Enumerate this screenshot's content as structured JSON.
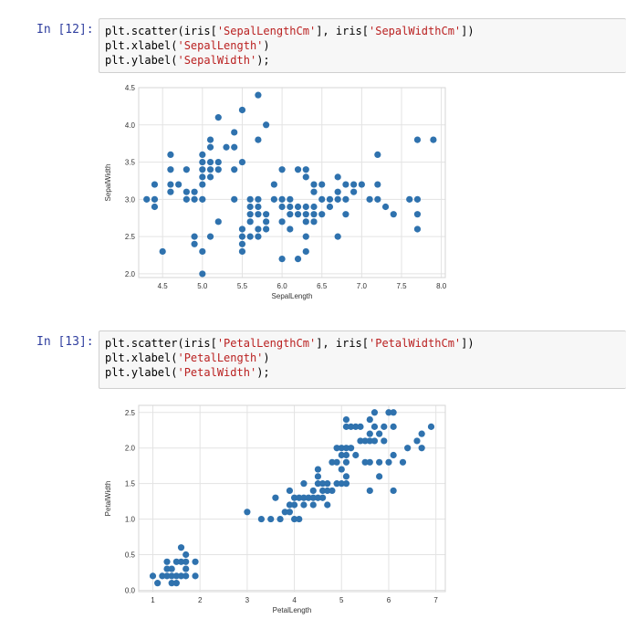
{
  "cells": [
    {
      "prompt": "In [12]:",
      "code": [
        [
          [
            "plt.scatter(iris[",
            ""
          ],
          [
            "'SepalLengthCm'",
            "str"
          ],
          [
            "], iris[",
            ""
          ],
          [
            "'SepalWidthCm'",
            "str"
          ],
          [
            "])",
            ""
          ]
        ],
        [
          [
            "plt.xlabel(",
            ""
          ],
          [
            "'SepalLength'",
            "str"
          ],
          [
            ")",
            ""
          ]
        ],
        [
          [
            "plt.ylabel(",
            ""
          ],
          [
            "'SepalWidth'",
            "str"
          ],
          [
            ");",
            ""
          ]
        ]
      ]
    },
    {
      "prompt": "In [13]:",
      "code": [
        [
          [
            "plt.scatter(iris[",
            ""
          ],
          [
            "'PetalLengthCm'",
            "str"
          ],
          [
            "], iris[",
            ""
          ],
          [
            "'PetalWidthCm'",
            "str"
          ],
          [
            "])",
            ""
          ]
        ],
        [
          [
            "plt.xlabel(",
            ""
          ],
          [
            "'PetalLength'",
            "str"
          ],
          [
            ")",
            ""
          ]
        ],
        [
          [
            "plt.ylabel(",
            ""
          ],
          [
            "'PetalWidth'",
            "str"
          ],
          [
            ");",
            ""
          ]
        ]
      ]
    }
  ],
  "chart_data": [
    {
      "type": "scatter",
      "xlabel": "SepalLength",
      "ylabel": "SepalWidth",
      "xlim": [
        4.2,
        8.05
      ],
      "ylim": [
        1.95,
        4.5
      ],
      "xticks": [
        4.5,
        5.0,
        5.5,
        6.0,
        6.5,
        7.0,
        7.5,
        8.0
      ],
      "xtick_labels": [
        "4.5",
        "5.0",
        "5.5",
        "6.0",
        "6.5",
        "7.0",
        "7.5",
        "8.0"
      ],
      "yticks": [
        2.0,
        2.5,
        3.0,
        3.5,
        4.0,
        4.5
      ],
      "ytick_labels": [
        "2.0",
        "2.5",
        "3.0",
        "3.5",
        "4.0",
        "4.5"
      ],
      "grid": true,
      "color": "#2f72ae",
      "points": [
        [
          4.3,
          3.0
        ],
        [
          4.4,
          3.0
        ],
        [
          4.4,
          2.9
        ],
        [
          4.4,
          3.2
        ],
        [
          4.5,
          2.3
        ],
        [
          4.6,
          3.1
        ],
        [
          4.6,
          3.4
        ],
        [
          4.6,
          3.6
        ],
        [
          4.6,
          3.2
        ],
        [
          4.7,
          3.2
        ],
        [
          4.8,
          3.0
        ],
        [
          4.8,
          3.4
        ],
        [
          4.8,
          3.1
        ],
        [
          4.9,
          3.0
        ],
        [
          4.9,
          3.1
        ],
        [
          4.9,
          2.4
        ],
        [
          4.9,
          2.5
        ],
        [
          5.0,
          3.6
        ],
        [
          5.0,
          3.4
        ],
        [
          5.0,
          3.0
        ],
        [
          5.0,
          3.3
        ],
        [
          5.0,
          3.5
        ],
        [
          5.0,
          3.2
        ],
        [
          5.0,
          2.0
        ],
        [
          5.0,
          2.3
        ],
        [
          5.1,
          3.5
        ],
        [
          5.1,
          3.8
        ],
        [
          5.1,
          3.7
        ],
        [
          5.1,
          3.3
        ],
        [
          5.1,
          3.4
        ],
        [
          5.1,
          2.5
        ],
        [
          5.2,
          3.5
        ],
        [
          5.2,
          3.4
        ],
        [
          5.2,
          4.1
        ],
        [
          5.2,
          2.7
        ],
        [
          5.3,
          3.7
        ],
        [
          5.4,
          3.9
        ],
        [
          5.4,
          3.7
        ],
        [
          5.4,
          3.4
        ],
        [
          5.4,
          3.0
        ],
        [
          5.5,
          4.2
        ],
        [
          5.5,
          3.5
        ],
        [
          5.5,
          2.3
        ],
        [
          5.5,
          2.4
        ],
        [
          5.5,
          2.5
        ],
        [
          5.5,
          2.6
        ],
        [
          5.6,
          3.0
        ],
        [
          5.6,
          2.9
        ],
        [
          5.6,
          2.5
        ],
        [
          5.6,
          2.7
        ],
        [
          5.6,
          2.8
        ],
        [
          5.7,
          4.4
        ],
        [
          5.7,
          3.8
        ],
        [
          5.7,
          2.8
        ],
        [
          5.7,
          2.6
        ],
        [
          5.7,
          3.0
        ],
        [
          5.7,
          2.9
        ],
        [
          5.7,
          2.5
        ],
        [
          5.8,
          4.0
        ],
        [
          5.8,
          2.7
        ],
        [
          5.8,
          2.6
        ],
        [
          5.8,
          2.8
        ],
        [
          5.9,
          3.0
        ],
        [
          5.9,
          3.2
        ],
        [
          6.0,
          2.2
        ],
        [
          6.0,
          2.9
        ],
        [
          6.0,
          2.7
        ],
        [
          6.0,
          3.4
        ],
        [
          6.0,
          3.0
        ],
        [
          6.1,
          2.8
        ],
        [
          6.1,
          2.9
        ],
        [
          6.1,
          3.0
        ],
        [
          6.1,
          2.6
        ],
        [
          6.2,
          2.2
        ],
        [
          6.2,
          2.9
        ],
        [
          6.2,
          3.4
        ],
        [
          6.2,
          2.8
        ],
        [
          6.3,
          3.3
        ],
        [
          6.3,
          2.5
        ],
        [
          6.3,
          2.3
        ],
        [
          6.3,
          2.9
        ],
        [
          6.3,
          2.7
        ],
        [
          6.3,
          2.8
        ],
        [
          6.3,
          3.4
        ],
        [
          6.4,
          3.2
        ],
        [
          6.4,
          2.9
        ],
        [
          6.4,
          2.7
        ],
        [
          6.4,
          2.8
        ],
        [
          6.4,
          3.1
        ],
        [
          6.5,
          2.8
        ],
        [
          6.5,
          3.0
        ],
        [
          6.5,
          3.2
        ],
        [
          6.6,
          2.9
        ],
        [
          6.6,
          3.0
        ],
        [
          6.7,
          3.1
        ],
        [
          6.7,
          3.0
        ],
        [
          6.7,
          2.5
        ],
        [
          6.7,
          3.3
        ],
        [
          6.8,
          2.8
        ],
        [
          6.8,
          3.0
        ],
        [
          6.8,
          3.2
        ],
        [
          6.9,
          3.1
        ],
        [
          6.9,
          3.2
        ],
        [
          7.0,
          3.2
        ],
        [
          7.1,
          3.0
        ],
        [
          7.2,
          3.6
        ],
        [
          7.2,
          3.2
        ],
        [
          7.2,
          3.0
        ],
        [
          7.3,
          2.9
        ],
        [
          7.4,
          2.8
        ],
        [
          7.6,
          3.0
        ],
        [
          7.7,
          3.8
        ],
        [
          7.7,
          2.6
        ],
        [
          7.7,
          2.8
        ],
        [
          7.7,
          3.0
        ],
        [
          7.9,
          3.8
        ]
      ]
    },
    {
      "type": "scatter",
      "xlabel": "PetalLength",
      "ylabel": "PetalWidth",
      "xlim": [
        0.7,
        7.2
      ],
      "ylim": [
        -0.02,
        2.6
      ],
      "xticks": [
        1,
        2,
        3,
        4,
        5,
        6,
        7
      ],
      "xtick_labels": [
        "1",
        "2",
        "3",
        "4",
        "5",
        "6",
        "7"
      ],
      "yticks": [
        0.0,
        0.5,
        1.0,
        1.5,
        2.0,
        2.5
      ],
      "ytick_labels": [
        "0.0",
        "0.5",
        "1.0",
        "1.5",
        "2.0",
        "2.5"
      ],
      "grid": true,
      "color": "#2f72ae",
      "points": [
        [
          1.0,
          0.2
        ],
        [
          1.1,
          0.1
        ],
        [
          1.2,
          0.2
        ],
        [
          1.3,
          0.2
        ],
        [
          1.3,
          0.3
        ],
        [
          1.3,
          0.4
        ],
        [
          1.4,
          0.1
        ],
        [
          1.4,
          0.2
        ],
        [
          1.4,
          0.3
        ],
        [
          1.5,
          0.1
        ],
        [
          1.5,
          0.2
        ],
        [
          1.5,
          0.4
        ],
        [
          1.6,
          0.2
        ],
        [
          1.6,
          0.4
        ],
        [
          1.6,
          0.6
        ],
        [
          1.7,
          0.2
        ],
        [
          1.7,
          0.3
        ],
        [
          1.7,
          0.5
        ],
        [
          1.7,
          0.4
        ],
        [
          1.9,
          0.2
        ],
        [
          1.9,
          0.4
        ],
        [
          3.0,
          1.1
        ],
        [
          3.3,
          1.0
        ],
        [
          3.5,
          1.0
        ],
        [
          3.6,
          1.3
        ],
        [
          3.7,
          1.0
        ],
        [
          3.8,
          1.1
        ],
        [
          3.9,
          1.1
        ],
        [
          3.9,
          1.2
        ],
        [
          3.9,
          1.4
        ],
        [
          4.0,
          1.0
        ],
        [
          4.0,
          1.2
        ],
        [
          4.0,
          1.3
        ],
        [
          4.1,
          1.0
        ],
        [
          4.1,
          1.3
        ],
        [
          4.2,
          1.2
        ],
        [
          4.2,
          1.3
        ],
        [
          4.2,
          1.5
        ],
        [
          4.3,
          1.3
        ],
        [
          4.4,
          1.2
        ],
        [
          4.4,
          1.3
        ],
        [
          4.4,
          1.4
        ],
        [
          4.5,
          1.3
        ],
        [
          4.5,
          1.5
        ],
        [
          4.5,
          1.6
        ],
        [
          4.5,
          1.7
        ],
        [
          4.6,
          1.3
        ],
        [
          4.6,
          1.4
        ],
        [
          4.6,
          1.5
        ],
        [
          4.7,
          1.2
        ],
        [
          4.7,
          1.4
        ],
        [
          4.7,
          1.5
        ],
        [
          4.8,
          1.4
        ],
        [
          4.8,
          1.8
        ],
        [
          4.9,
          1.5
        ],
        [
          4.9,
          1.8
        ],
        [
          4.9,
          2.0
        ],
        [
          5.0,
          1.5
        ],
        [
          5.0,
          1.7
        ],
        [
          5.0,
          1.9
        ],
        [
          5.0,
          2.0
        ],
        [
          5.1,
          1.5
        ],
        [
          5.1,
          1.6
        ],
        [
          5.1,
          1.8
        ],
        [
          5.1,
          1.9
        ],
        [
          5.1,
          2.0
        ],
        [
          5.1,
          2.3
        ],
        [
          5.1,
          2.4
        ],
        [
          5.2,
          2.0
        ],
        [
          5.2,
          2.3
        ],
        [
          5.3,
          1.9
        ],
        [
          5.3,
          2.3
        ],
        [
          5.4,
          2.1
        ],
        [
          5.4,
          2.3
        ],
        [
          5.5,
          1.8
        ],
        [
          5.5,
          2.1
        ],
        [
          5.6,
          1.4
        ],
        [
          5.6,
          1.8
        ],
        [
          5.6,
          2.1
        ],
        [
          5.6,
          2.2
        ],
        [
          5.6,
          2.4
        ],
        [
          5.7,
          2.1
        ],
        [
          5.7,
          2.3
        ],
        [
          5.7,
          2.5
        ],
        [
          5.8,
          1.6
        ],
        [
          5.8,
          1.8
        ],
        [
          5.8,
          2.2
        ],
        [
          5.9,
          2.1
        ],
        [
          5.9,
          2.3
        ],
        [
          6.0,
          1.8
        ],
        [
          6.0,
          2.5
        ],
        [
          6.1,
          1.9
        ],
        [
          6.1,
          2.3
        ],
        [
          6.1,
          2.5
        ],
        [
          6.1,
          1.4
        ],
        [
          6.3,
          1.8
        ],
        [
          6.4,
          2.0
        ],
        [
          6.6,
          2.1
        ],
        [
          6.7,
          2.0
        ],
        [
          6.7,
          2.2
        ],
        [
          6.9,
          2.3
        ]
      ]
    }
  ]
}
